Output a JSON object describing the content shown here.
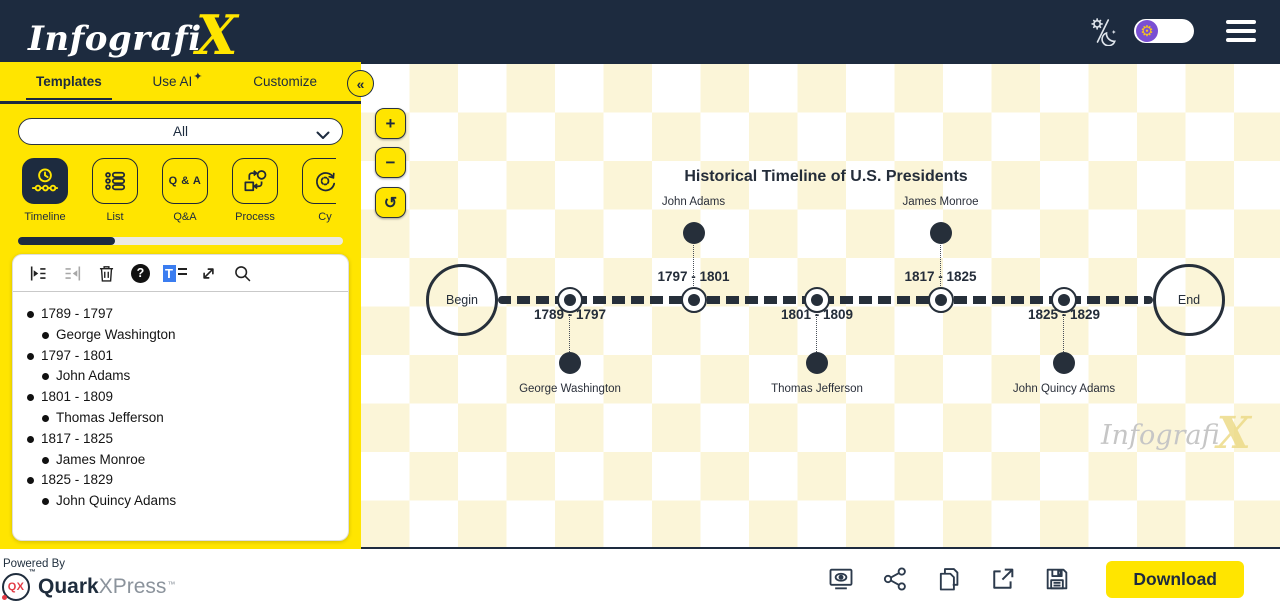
{
  "header": {
    "logo": {
      "text": "Infografi",
      "x": "X"
    }
  },
  "sidebar": {
    "tabs": [
      {
        "label": "Templates",
        "active": true
      },
      {
        "label": "Use AI",
        "active": false
      },
      {
        "label": "Customize",
        "active": false
      }
    ],
    "filter_value": "All",
    "template_types": [
      {
        "label": "Timeline",
        "active": true
      },
      {
        "label": "List",
        "active": false
      },
      {
        "label": "Q&A",
        "active": false
      },
      {
        "label": "Process",
        "active": false
      },
      {
        "label": "Cy",
        "active": false
      }
    ]
  },
  "icons": {
    "collapse": "«",
    "sparkle": "✦",
    "help": "?",
    "text_format": "T",
    "qa_text": "Q & A",
    "zoom_in": "+",
    "zoom_out": "−",
    "undo": "↺",
    "toggle_knob": "⚙"
  },
  "timeline": {
    "title": "Historical Timeline of U.S. Presidents",
    "begin_label": "Begin",
    "end_label": "End",
    "events": [
      {
        "date": "1789 - 1797",
        "name": "George Washington",
        "side": "below"
      },
      {
        "date": "1797 - 1801",
        "name": "John Adams",
        "side": "above"
      },
      {
        "date": "1801 - 1809",
        "name": "Thomas Jefferson",
        "side": "below"
      },
      {
        "date": "1817 - 1825",
        "name": "James Monroe",
        "side": "above"
      },
      {
        "date": "1825 - 1829",
        "name": "John Quincy Adams",
        "side": "below"
      }
    ]
  },
  "watermark": {
    "text": "Infografi",
    "x": "X"
  },
  "footer": {
    "powered_by": "Powered By",
    "quark": {
      "qx": "QX",
      "name_bold": "Quark",
      "name_light": "XPress",
      "tm": "™"
    },
    "download_label": "Download"
  },
  "colors": {
    "brand_yellow": "#ffe500",
    "header_navy": "#1d2b3f",
    "ink": "#262f3a",
    "pale_checker": "#fbf5d8",
    "qx_red": "#e23a44",
    "highlight_blue": "#3b7df0"
  }
}
